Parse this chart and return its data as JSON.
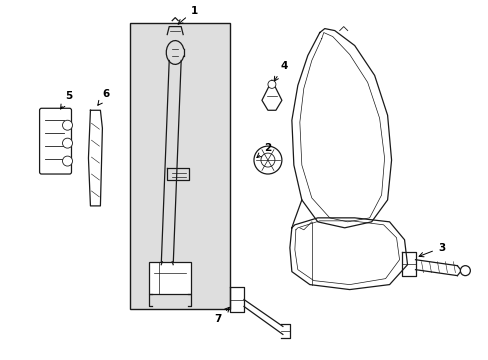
{
  "bg_color": "#ffffff",
  "box_bg": "#e8e8e8",
  "line_color": "#1a1a1a",
  "fig_width": 4.89,
  "fig_height": 3.6,
  "dpi": 100
}
